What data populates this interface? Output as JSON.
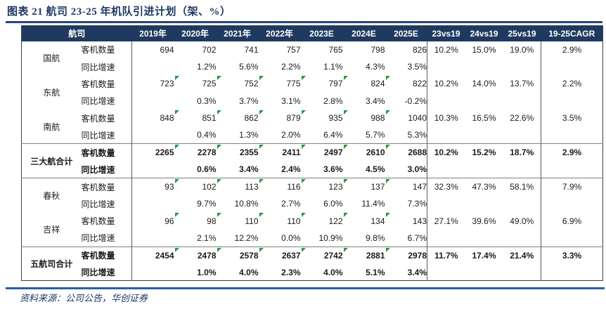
{
  "page": {
    "title": "图表 21  航司 23-25 年机队引进计划（架、%）",
    "source_note": "资料来源：公司公告，华创证券"
  },
  "colors": {
    "header_bg": "#1F3A60",
    "header_text": "#FFFFFF",
    "title_text": "#1F3864",
    "title_rule": "#24477A",
    "footer_rule": "#2B5CA8",
    "flag_green": "#1E9C3C",
    "group_separator": "#7F7F7F",
    "table_border": "#3F3F3F"
  },
  "table": {
    "header": {
      "col0": "航司",
      "years": [
        "2019年",
        "2020年",
        "2021年",
        "2022年",
        "2023E",
        "2024E",
        "2025E"
      ],
      "vs": [
        "23vs19",
        "24vs19",
        "25vs19"
      ],
      "cagr": "19-25CAGR"
    },
    "metrics": {
      "fleet": "客机数量",
      "growth": "同比增速"
    },
    "groups": [
      {
        "name": "国航",
        "bold": false,
        "sep_above": false,
        "fleet": [
          "694",
          "702",
          "741",
          "757",
          "765",
          "798",
          "826"
        ],
        "flags": [
          false,
          false,
          false,
          false,
          false,
          false,
          false
        ],
        "growth": [
          "",
          "1.2%",
          "5.6%",
          "2.2%",
          "1.1%",
          "4.3%",
          "3.5%"
        ],
        "vs": [
          "10.2%",
          "15.0%",
          "19.0%"
        ],
        "cagr": "2.9%"
      },
      {
        "name": "东航",
        "bold": false,
        "sep_above": false,
        "fleet": [
          "723",
          "725",
          "752",
          "775",
          "797",
          "824",
          "822"
        ],
        "flags": [
          false,
          true,
          true,
          true,
          true,
          true,
          true
        ],
        "growth": [
          "",
          "0.3%",
          "3.7%",
          "3.1%",
          "2.8%",
          "3.4%",
          "-0.2%"
        ],
        "vs": [
          "10.2%",
          "14.0%",
          "13.7%"
        ],
        "cagr": "2.2%"
      },
      {
        "name": "南航",
        "bold": false,
        "sep_above": false,
        "fleet": [
          "848",
          "851",
          "862",
          "879",
          "935",
          "988",
          "1040"
        ],
        "flags": [
          false,
          true,
          true,
          true,
          true,
          true,
          true
        ],
        "growth": [
          "",
          "0.4%",
          "1.3%",
          "2.0%",
          "6.4%",
          "5.7%",
          "5.3%"
        ],
        "vs": [
          "10.3%",
          "16.5%",
          "22.6%"
        ],
        "cagr": "3.5%"
      },
      {
        "name": "三大航合计",
        "bold": true,
        "sep_above": true,
        "fleet": [
          "2265",
          "2278",
          "2355",
          "2411",
          "2497",
          "2610",
          "2688"
        ],
        "flags": [
          false,
          true,
          true,
          true,
          true,
          true,
          true
        ],
        "growth": [
          "",
          "0.6%",
          "3.4%",
          "2.4%",
          "3.6%",
          "4.5%",
          "3.0%"
        ],
        "vs": [
          "10.2%",
          "15.2%",
          "18.7%"
        ],
        "cagr": "2.9%"
      },
      {
        "name": "春秋",
        "bold": false,
        "sep_above": true,
        "fleet": [
          "93",
          "102",
          "113",
          "116",
          "123",
          "137",
          "147"
        ],
        "flags": [
          false,
          true,
          true,
          true,
          true,
          true,
          true
        ],
        "growth": [
          "",
          "9.7%",
          "10.8%",
          "2.7%",
          "6.0%",
          "11.4%",
          "7.3%"
        ],
        "vs": [
          "32.3%",
          "47.3%",
          "58.1%"
        ],
        "cagr": "7.9%"
      },
      {
        "name": "吉祥",
        "bold": false,
        "sep_above": false,
        "fleet": [
          "96",
          "98",
          "110",
          "110",
          "122",
          "134",
          "143"
        ],
        "flags": [
          false,
          true,
          true,
          true,
          true,
          true,
          true
        ],
        "growth": [
          "",
          "2.1%",
          "12.2%",
          "0.0%",
          "10.9%",
          "9.8%",
          "6.7%"
        ],
        "vs": [
          "27.1%",
          "39.6%",
          "49.0%"
        ],
        "cagr": "6.9%"
      },
      {
        "name": "五航司合计",
        "bold": true,
        "sep_above": true,
        "fleet": [
          "2454",
          "2478",
          "2578",
          "2637",
          "2742",
          "2881",
          "2978"
        ],
        "flags": [
          false,
          true,
          true,
          true,
          true,
          true,
          true
        ],
        "growth": [
          "",
          "1.0%",
          "4.0%",
          "2.3%",
          "4.0%",
          "5.1%",
          "3.4%"
        ],
        "vs": [
          "11.7%",
          "17.4%",
          "21.4%"
        ],
        "cagr": "3.3%"
      }
    ]
  }
}
